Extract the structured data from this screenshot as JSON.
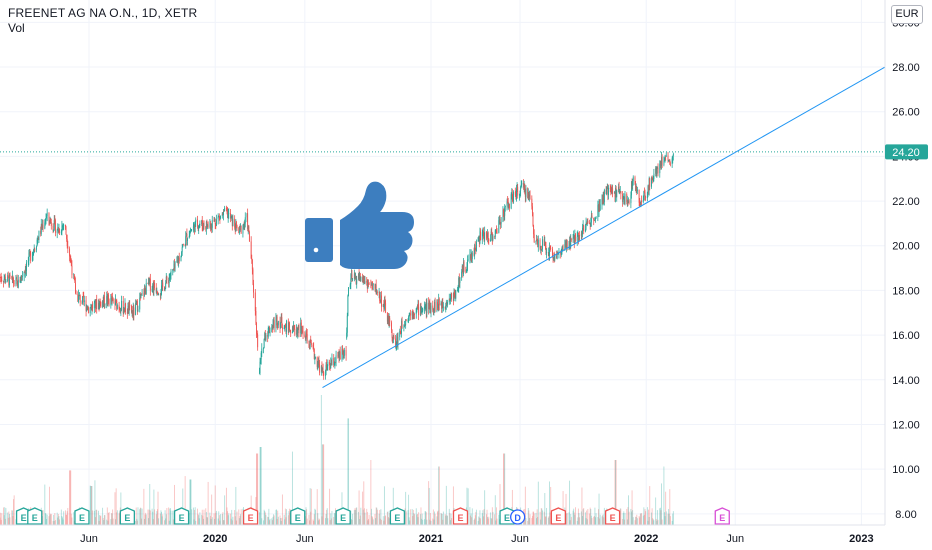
{
  "legend": {
    "symbol": "FREENET AG NA O.N., 1D, XETR",
    "indicator": "Vol"
  },
  "currency": "EUR",
  "last_price_label": "24.20",
  "colors": {
    "up": "#26a69a",
    "down": "#ef5350",
    "trendline": "#2196f3",
    "last_price": "#26a69a",
    "thumb": "#3d7ebf",
    "earnings": "#26a69a",
    "earnings_neg": "#ef5350",
    "earnings_future": "#d84fd6",
    "dividend": "#2962ff"
  },
  "icons": {
    "center": "thumbs-up-icon"
  },
  "chart_data": {
    "type": "candlestick",
    "y_ticks": [
      "8.00",
      "10.00",
      "12.00",
      "14.00",
      "16.00",
      "18.00",
      "20.00",
      "22.00",
      "24.00",
      "26.00",
      "28.00",
      "30.00"
    ],
    "ylim": [
      7.5,
      31
    ],
    "x_ticks": [
      "Jun",
      "2020",
      "Jun",
      "2021",
      "Jun",
      "2022",
      "Jun",
      "2023"
    ],
    "x_tick_bold": [
      false,
      true,
      false,
      true,
      false,
      true,
      false,
      true
    ],
    "xlim": [
      "2019-01-01",
      "2023-02-10"
    ],
    "price_path": [
      [
        "2019-01-01",
        18.6
      ],
      [
        "2019-02-01",
        18.3
      ],
      [
        "2019-03-01",
        20.0
      ],
      [
        "2019-03-20",
        21.3
      ],
      [
        "2019-04-10",
        20.7
      ],
      [
        "2019-04-20",
        21.0
      ],
      [
        "2019-04-28",
        19.8
      ],
      [
        "2019-05-10",
        17.8
      ],
      [
        "2019-06-01",
        17.2
      ],
      [
        "2019-07-01",
        17.6
      ],
      [
        "2019-08-15",
        17.0
      ],
      [
        "2019-09-10",
        18.3
      ],
      [
        "2019-10-01",
        18.0
      ],
      [
        "2019-10-25",
        19.0
      ],
      [
        "2019-11-15",
        20.5
      ],
      [
        "2019-12-01",
        21.0
      ],
      [
        "2019-12-20",
        20.9
      ],
      [
        "2020-01-20",
        21.5
      ],
      [
        "2020-02-10",
        20.6
      ],
      [
        "2020-02-24",
        21.2
      ],
      [
        "2020-03-02",
        19.5
      ],
      [
        "2020-03-16",
        14.5
      ],
      [
        "2020-03-25",
        16.0
      ],
      [
        "2020-04-15",
        16.7
      ],
      [
        "2020-05-10",
        16.2
      ],
      [
        "2020-05-25",
        16.3
      ],
      [
        "2020-06-10",
        15.5
      ],
      [
        "2020-07-01",
        14.3
      ],
      [
        "2020-07-20",
        14.8
      ],
      [
        "2020-08-10",
        15.3
      ],
      [
        "2020-08-14",
        18.4
      ],
      [
        "2020-09-01",
        18.6
      ],
      [
        "2020-10-01",
        18.0
      ],
      [
        "2020-10-15",
        17.2
      ],
      [
        "2020-11-01",
        15.5
      ],
      [
        "2020-11-15",
        16.6
      ],
      [
        "2020-12-01",
        17.1
      ],
      [
        "2020-12-20",
        17.2
      ],
      [
        "2021-01-20",
        17.4
      ],
      [
        "2021-02-10",
        17.8
      ],
      [
        "2021-02-25",
        19.0
      ],
      [
        "2021-03-10",
        19.5
      ],
      [
        "2021-03-25",
        20.4
      ],
      [
        "2021-04-20",
        20.5
      ],
      [
        "2021-05-01",
        21.4
      ],
      [
        "2021-05-20",
        22.2
      ],
      [
        "2021-06-05",
        22.6
      ],
      [
        "2021-06-20",
        22.1
      ],
      [
        "2021-06-25",
        20.3
      ],
      [
        "2021-07-10",
        20.0
      ],
      [
        "2021-08-01",
        19.5
      ],
      [
        "2021-09-01",
        20.3
      ],
      [
        "2021-10-01",
        21.2
      ],
      [
        "2021-10-25",
        22.4
      ],
      [
        "2021-11-15",
        22.4
      ],
      [
        "2021-12-01",
        21.9
      ],
      [
        "2021-12-10",
        23.0
      ],
      [
        "2021-12-22",
        21.8
      ],
      [
        "2022-01-10",
        23.0
      ],
      [
        "2022-01-25",
        23.7
      ],
      [
        "2022-02-05",
        24.1
      ],
      [
        "2022-02-12",
        23.5
      ],
      [
        "2022-02-16",
        24.2
      ]
    ],
    "trendline": {
      "x": [
        "2020-07-01",
        "2023-02-10"
      ],
      "y": [
        13.65,
        28.0
      ]
    },
    "last_price": 24.2,
    "volume_spikes": [
      [
        "2019-04-30",
        0.42
      ],
      [
        "2019-06-05",
        0.3
      ],
      [
        "2019-11-20",
        0.35
      ],
      [
        "2020-03-12",
        0.55
      ],
      [
        "2020-03-18",
        0.6
      ],
      [
        "2020-05-10",
        0.35
      ],
      [
        "2020-06-28",
        1.0
      ],
      [
        "2020-07-02",
        0.62
      ],
      [
        "2020-08-14",
        0.82
      ],
      [
        "2020-09-20",
        0.5
      ],
      [
        "2021-01-15",
        0.45
      ],
      [
        "2021-05-05",
        0.55
      ],
      [
        "2021-11-10",
        0.5
      ],
      [
        "2022-01-30",
        0.45
      ]
    ],
    "events": [
      {
        "type": "E",
        "date": "2019-02-10"
      },
      {
        "type": "E",
        "date": "2019-03-01"
      },
      {
        "type": "E",
        "date": "2019-05-20"
      },
      {
        "type": "E",
        "date": "2019-08-05"
      },
      {
        "type": "E",
        "date": "2019-11-05"
      },
      {
        "type": "E",
        "date": "2020-03-01"
      },
      {
        "type": "E",
        "date": "2020-05-20"
      },
      {
        "type": "E",
        "date": "2020-08-05"
      },
      {
        "type": "E",
        "date": "2020-11-05"
      },
      {
        "type": "E",
        "date": "2021-02-20"
      },
      {
        "type": "E",
        "date": "2021-05-10"
      },
      {
        "type": "D",
        "date": "2021-05-28"
      },
      {
        "type": "E",
        "date": "2021-08-05"
      },
      {
        "type": "E",
        "date": "2021-11-05"
      },
      {
        "type": "E",
        "date": "2022-05-10"
      }
    ]
  }
}
